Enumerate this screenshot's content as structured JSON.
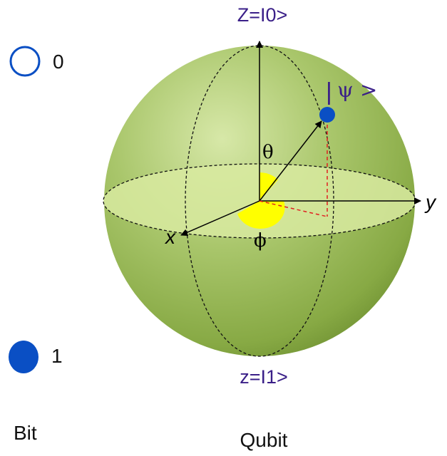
{
  "bit": {
    "state0_label": "0",
    "state1_label": "1",
    "caption": "Bit",
    "icon_color": "#0a4fc4"
  },
  "qubit": {
    "caption": "Qubit",
    "top_label": "Z=I0>",
    "bottom_label": "z=I1>",
    "x_label": "x",
    "y_label": "y",
    "theta_label": "θ",
    "phi_label": "ϕ",
    "psi_bar": "|",
    "psi_label": "ψ >",
    "colors": {
      "sphere": "#93b552",
      "sphere_highlight": "#cfe3a0",
      "equator": "#d8eaa0",
      "state_point": "#0a4fc4",
      "angle_marker": "#ffff00",
      "projection": "#e02020",
      "label": "#3a1f88"
    }
  }
}
